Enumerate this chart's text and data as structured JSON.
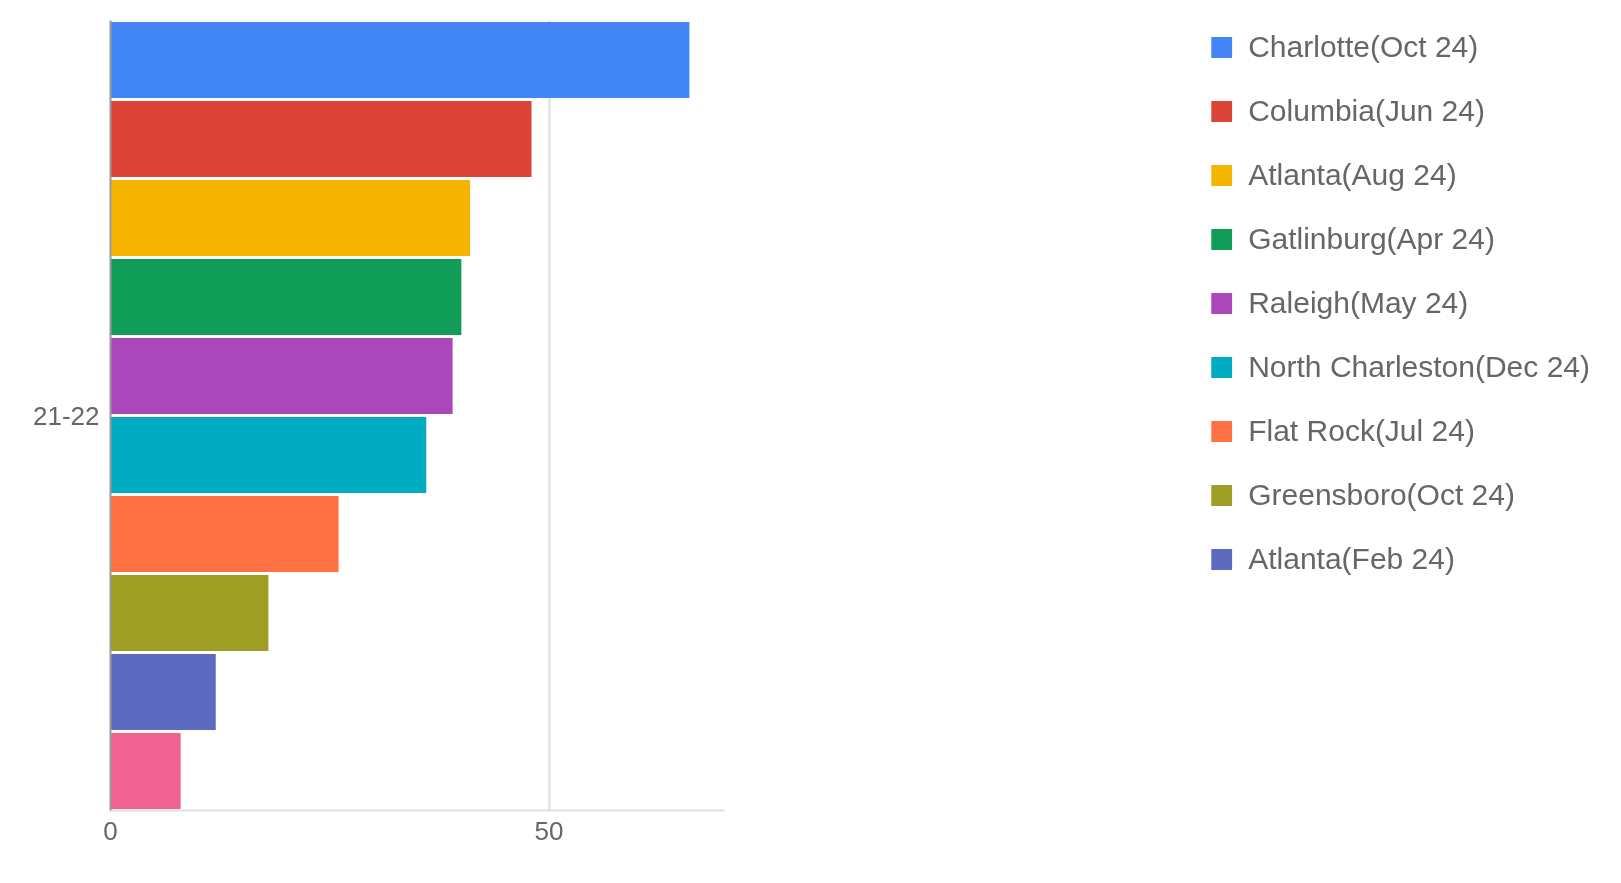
{
  "chart_data": {
    "type": "bar",
    "orientation": "horizontal",
    "categories": [
      "21-22"
    ],
    "series": [
      {
        "name": "Charlotte(Oct 24)",
        "color": "#4285f4",
        "values": [
          66
        ]
      },
      {
        "name": "Columbia(Jun 24)",
        "color": "#db4437",
        "values": [
          48
        ]
      },
      {
        "name": "Atlanta(Aug 24)",
        "color": "#f4b400",
        "values": [
          41
        ]
      },
      {
        "name": "Gatlinburg(Apr 24)",
        "color": "#0f9d58",
        "values": [
          40
        ]
      },
      {
        "name": "Raleigh(May 24)",
        "color": "#ab47bc",
        "values": [
          39
        ]
      },
      {
        "name": "North Charleston(Dec 24)",
        "color": "#00acc1",
        "values": [
          36
        ]
      },
      {
        "name": "Flat Rock(Jul 24)",
        "color": "#ff7043",
        "values": [
          26
        ]
      },
      {
        "name": "Greensboro(Oct 24)",
        "color": "#9e9d24",
        "values": [
          18
        ]
      },
      {
        "name": "Atlanta(Feb 24)",
        "color": "#5c6bc0",
        "values": [
          12
        ]
      },
      {
        "color": "#f06292",
        "values": [
          8
        ]
      }
    ],
    "xlim": [
      0,
      70
    ],
    "xticks": [
      0,
      50
    ],
    "grid": "x",
    "legend": "right"
  }
}
